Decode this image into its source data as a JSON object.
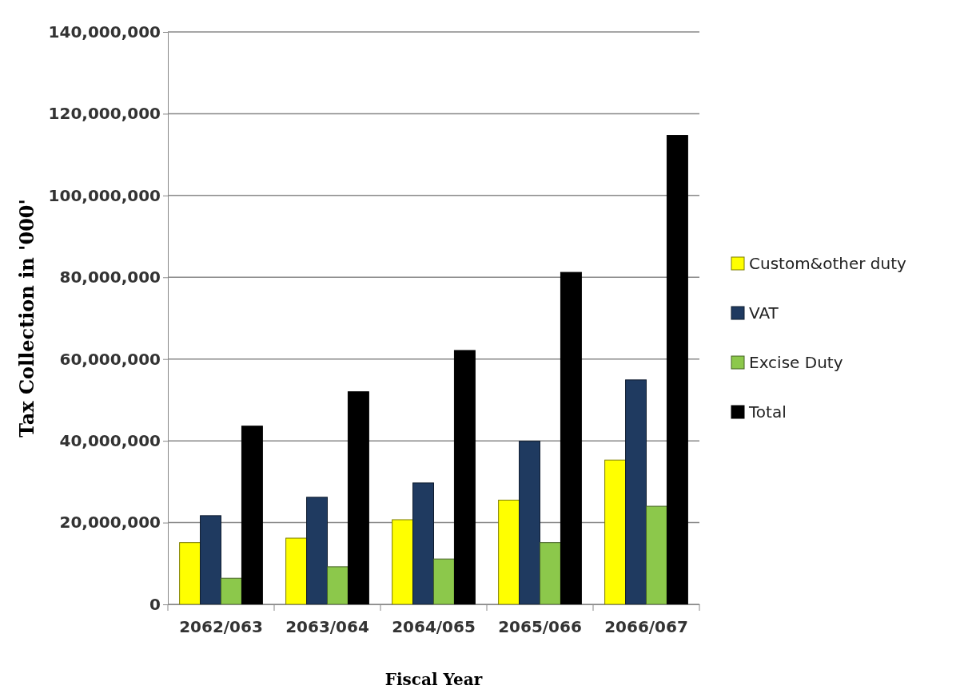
{
  "chart_data": {
    "type": "bar",
    "xlabel": "Fiscal Year",
    "ylabel": "Tax Collection in '000'",
    "categories": [
      "2062/063",
      "2063/064",
      "2064/065",
      "2065/066",
      "2066/067"
    ],
    "series": [
      {
        "name": "Custom&other duty",
        "color": "#ffff00",
        "values": [
          15100000,
          16200000,
          20700000,
          25500000,
          35300000
        ]
      },
      {
        "name": "VAT",
        "color": "#1f3a60",
        "values": [
          21700000,
          26200000,
          29700000,
          39900000,
          54900000
        ]
      },
      {
        "name": "Excise Duty",
        "color": "#8cc84b",
        "values": [
          6400000,
          9200000,
          11100000,
          15100000,
          24000000
        ]
      },
      {
        "name": "Total",
        "color": "#000000",
        "values": [
          43600000,
          52000000,
          62100000,
          81200000,
          114700000
        ]
      }
    ],
    "ylim": [
      0,
      140000000
    ],
    "yticks": [
      {
        "value": 0,
        "label": "0"
      },
      {
        "value": 20000000,
        "label": "20,000,000"
      },
      {
        "value": 40000000,
        "label": "40,000,000"
      },
      {
        "value": 60000000,
        "label": "60,000,000"
      },
      {
        "value": 80000000,
        "label": "80,000,000"
      },
      {
        "value": 100000000,
        "label": "100,000,000"
      },
      {
        "value": 120000000,
        "label": "120,000,000"
      },
      {
        "value": 140000000,
        "label": "140,000,000"
      }
    ],
    "grid": "y",
    "legend": "right"
  }
}
